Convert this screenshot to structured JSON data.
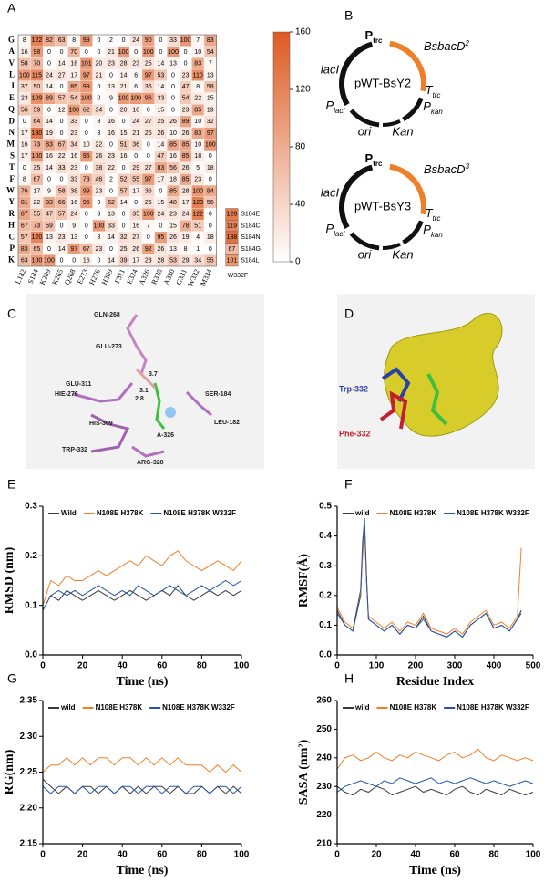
{
  "panel_labels": [
    "A",
    "B",
    "C",
    "D",
    "E",
    "F",
    "G",
    "H"
  ],
  "chart_data": [
    {
      "type": "heatmap",
      "rows": [
        "G",
        "A",
        "V",
        "L",
        "I",
        "E",
        "Q",
        "D",
        "N",
        "M",
        "S",
        "T",
        "F",
        "W",
        "Y",
        "R",
        "H",
        "C",
        "P",
        "K"
      ],
      "columns": [
        "L182",
        "S184",
        "K209",
        "K265",
        "Q268",
        "E273",
        "H276",
        "H309",
        "F311",
        "E324",
        "A326",
        "R328",
        "A330",
        "G331",
        "W332",
        "M334"
      ],
      "values": [
        [
          8,
          122,
          82,
          63,
          8,
          99,
          0,
          2,
          0,
          24,
          90,
          0,
          33,
          100,
          7,
          83
        ],
        [
          16,
          98,
          0,
          0,
          70,
          0,
          0,
          21,
          100,
          0,
          100,
          0,
          100,
          0,
          10,
          54
        ],
        [
          58,
          70,
          0,
          14,
          18,
          101,
          20,
          23,
          28,
          23,
          25,
          14,
          13,
          0,
          83,
          7
        ],
        [
          100,
          115,
          24,
          27,
          17,
          97,
          21,
          0,
          14,
          6,
          97,
          53,
          0,
          23,
          110,
          13
        ],
        [
          37,
          50,
          14,
          0,
          85,
          99,
          0,
          13,
          21,
          6,
          36,
          14,
          0,
          47,
          8,
          58
        ],
        [
          23,
          109,
          89,
          57,
          54,
          100,
          0,
          9,
          100,
          100,
          96,
          33,
          0,
          54,
          22,
          15
        ],
        [
          56,
          59,
          0,
          12,
          100,
          62,
          34,
          0,
          20,
          18,
          0,
          15,
          0,
          23,
          85,
          19
        ],
        [
          0,
          64,
          14,
          0,
          33,
          0,
          8,
          16,
          0,
          24,
          27,
          25,
          26,
          89,
          10,
          32
        ],
        [
          17,
          130,
          19,
          0,
          23,
          0,
          3,
          16,
          15,
          21,
          25,
          26,
          10,
          26,
          83,
          97
        ],
        [
          16,
          73,
          83,
          67,
          34,
          10,
          22,
          0,
          51,
          36,
          0,
          14,
          85,
          85,
          10,
          100
        ],
        [
          17,
          100,
          16,
          22,
          16,
          96,
          26,
          23,
          16,
          0,
          0,
          47,
          16,
          85,
          18,
          0
        ],
        [
          0,
          35,
          14,
          33,
          23,
          0,
          38,
          22,
          0,
          29,
          27,
          83,
          56,
          26,
          5,
          18
        ],
        [
          8,
          67,
          0,
          0,
          33,
          73,
          46,
          2,
          52,
          55,
          97,
          17,
          18,
          85,
          23,
          0
        ],
        [
          76,
          17,
          9,
          58,
          38,
          99,
          23,
          0,
          57,
          17,
          36,
          0,
          85,
          28,
          100,
          84
        ],
        [
          81,
          22,
          83,
          66,
          16,
          95,
          0,
          62,
          14,
          0,
          26,
          15,
          48,
          17,
          123,
          56
        ],
        [
          87,
          55,
          47,
          57,
          24,
          0,
          3,
          13,
          0,
          35,
          100,
          24,
          23,
          24,
          122,
          0
        ],
        [
          67,
          73,
          59,
          0,
          9,
          0,
          100,
          33,
          0,
          16,
          7,
          0,
          15,
          78,
          51,
          0
        ],
        [
          57,
          120,
          13,
          23,
          13,
          0,
          8,
          14,
          32,
          27,
          0,
          95,
          26,
          19,
          4,
          18
        ],
        [
          83,
          65,
          0,
          14,
          97,
          67,
          23,
          0,
          25,
          26,
          92,
          26,
          13,
          8,
          1,
          0
        ],
        [
          63,
          100,
          100,
          0,
          0,
          16,
          0,
          14,
          39,
          17,
          23,
          28,
          53,
          29,
          34,
          55
        ]
      ],
      "extra": {
        "column": "W332F",
        "rows": [
          "S184E",
          "S184C",
          "S184N",
          "S184G",
          "S184L"
        ],
        "values": [
          128,
          119,
          138,
          67,
          101
        ]
      },
      "clim": [
        0,
        160
      ],
      "cticks": [
        0,
        40,
        80,
        120,
        160
      ],
      "color_low": "#ffffff",
      "color_high": "#dd5a22"
    },
    {
      "type": "line",
      "xlabel": "Time (ns)",
      "ylabel": "RMSD (nm)",
      "xlim": [
        0,
        100
      ],
      "xticks": [
        0,
        20,
        40,
        60,
        80,
        100
      ],
      "ylim": [
        0,
        0.3
      ],
      "yticks": [
        {
          "value": 0,
          "label": "0.0"
        },
        0.1,
        0.2,
        0.3
      ],
      "x": [
        0,
        4,
        8,
        12,
        16,
        20,
        24,
        28,
        32,
        36,
        40,
        44,
        48,
        52,
        56,
        60,
        64,
        68,
        72,
        76,
        80,
        84,
        88,
        92,
        96,
        100
      ],
      "series": [
        {
          "name": "Wild",
          "color": "#3a3a3a",
          "values": [
            0.09,
            0.12,
            0.11,
            0.13,
            0.12,
            0.11,
            0.12,
            0.13,
            0.12,
            0.11,
            0.12,
            0.13,
            0.12,
            0.11,
            0.12,
            0.13,
            0.12,
            0.14,
            0.12,
            0.11,
            0.12,
            0.13,
            0.12,
            0.13,
            0.12,
            0.13
          ]
        },
        {
          "name": "N108E H378K",
          "color": "#f07f2a",
          "values": [
            0.1,
            0.15,
            0.14,
            0.16,
            0.15,
            0.15,
            0.16,
            0.17,
            0.16,
            0.17,
            0.18,
            0.19,
            0.18,
            0.2,
            0.19,
            0.18,
            0.2,
            0.21,
            0.19,
            0.18,
            0.17,
            0.18,
            0.19,
            0.18,
            0.17,
            0.19
          ]
        },
        {
          "name": "N108E H378K W332F",
          "color": "#2255aa",
          "values": [
            0.09,
            0.12,
            0.13,
            0.12,
            0.13,
            0.12,
            0.13,
            0.14,
            0.13,
            0.12,
            0.13,
            0.12,
            0.14,
            0.13,
            0.12,
            0.13,
            0.14,
            0.13,
            0.12,
            0.13,
            0.14,
            0.13,
            0.14,
            0.15,
            0.14,
            0.15
          ]
        }
      ]
    },
    {
      "type": "line",
      "xlabel": "Residue Index",
      "ylabel": "RMSF(Å)",
      "xlim": [
        0,
        500
      ],
      "xticks": [
        0,
        100,
        200,
        300,
        400,
        500
      ],
      "ylim": [
        0,
        0.5
      ],
      "yticks": [
        {
          "value": 0,
          "label": "0.0"
        },
        0.1,
        0.2,
        0.3,
        0.4,
        0.5
      ],
      "x": [
        0,
        20,
        40,
        60,
        65,
        70,
        75,
        80,
        100,
        120,
        140,
        160,
        180,
        200,
        220,
        240,
        260,
        280,
        300,
        320,
        340,
        360,
        380,
        400,
        420,
        440,
        460,
        470
      ],
      "series": [
        {
          "name": "wild",
          "color": "#3a3a3a",
          "values": [
            0.15,
            0.1,
            0.08,
            0.2,
            0.35,
            0.44,
            0.25,
            0.12,
            0.1,
            0.08,
            0.1,
            0.07,
            0.1,
            0.09,
            0.13,
            0.08,
            0.07,
            0.06,
            0.08,
            0.06,
            0.1,
            0.12,
            0.14,
            0.09,
            0.1,
            0.08,
            0.12,
            0.15
          ]
        },
        {
          "name": "N108E H378K",
          "color": "#f07f2a",
          "values": [
            0.16,
            0.11,
            0.09,
            0.21,
            0.33,
            0.42,
            0.24,
            0.13,
            0.11,
            0.09,
            0.11,
            0.08,
            0.11,
            0.1,
            0.14,
            0.09,
            0.08,
            0.07,
            0.09,
            0.07,
            0.11,
            0.13,
            0.15,
            0.1,
            0.11,
            0.09,
            0.13,
            0.36
          ]
        },
        {
          "name": "N108E H378K W332F",
          "color": "#2255aa",
          "values": [
            0.14,
            0.1,
            0.08,
            0.22,
            0.38,
            0.46,
            0.26,
            0.12,
            0.1,
            0.08,
            0.1,
            0.07,
            0.1,
            0.09,
            0.12,
            0.08,
            0.07,
            0.06,
            0.08,
            0.06,
            0.1,
            0.12,
            0.14,
            0.09,
            0.1,
            0.08,
            0.12,
            0.14
          ]
        }
      ]
    },
    {
      "type": "line",
      "xlabel": "Time (ns)",
      "ylabel": "RG(nm)",
      "xlim": [
        0,
        100
      ],
      "xticks": [
        0,
        20,
        40,
        60,
        80,
        100
      ],
      "ylim": [
        2.15,
        2.35
      ],
      "yticks": [
        2.15,
        {
          "value": 2.2,
          "label": "2.20"
        },
        2.25,
        {
          "value": 2.3,
          "label": "2.30"
        },
        2.35
      ],
      "x": [
        0,
        4,
        8,
        12,
        16,
        20,
        24,
        28,
        32,
        36,
        40,
        44,
        48,
        52,
        56,
        60,
        64,
        68,
        72,
        76,
        80,
        84,
        88,
        92,
        96,
        100
      ],
      "series": [
        {
          "name": "wild",
          "color": "#3a3a3a",
          "values": [
            2.24,
            2.23,
            2.22,
            2.23,
            2.22,
            2.23,
            2.23,
            2.22,
            2.23,
            2.22,
            2.23,
            2.22,
            2.23,
            2.22,
            2.23,
            2.23,
            2.22,
            2.23,
            2.22,
            2.22,
            2.23,
            2.22,
            2.23,
            2.22,
            2.23,
            2.22
          ]
        },
        {
          "name": "N108E H378K",
          "color": "#f07f2a",
          "values": [
            2.25,
            2.26,
            2.26,
            2.27,
            2.26,
            2.27,
            2.26,
            2.27,
            2.27,
            2.26,
            2.27,
            2.27,
            2.26,
            2.27,
            2.26,
            2.27,
            2.26,
            2.27,
            2.26,
            2.26,
            2.26,
            2.25,
            2.26,
            2.25,
            2.26,
            2.25
          ]
        },
        {
          "name": "N108E H378K W332F",
          "color": "#2255aa",
          "values": [
            2.23,
            2.22,
            2.23,
            2.23,
            2.22,
            2.23,
            2.22,
            2.23,
            2.23,
            2.22,
            2.23,
            2.23,
            2.22,
            2.23,
            2.23,
            2.22,
            2.23,
            2.23,
            2.22,
            2.23,
            2.23,
            2.22,
            2.23,
            2.23,
            2.22,
            2.23
          ]
        }
      ]
    },
    {
      "type": "line",
      "xlabel": "Time (ns)",
      "ylabel": "SASA (nm²)",
      "xlim": [
        0,
        100
      ],
      "xticks": [
        0,
        20,
        40,
        60,
        80,
        100
      ],
      "ylim": [
        210,
        260
      ],
      "yticks": [
        210,
        220,
        230,
        240,
        250,
        260
      ],
      "x": [
        0,
        4,
        8,
        12,
        16,
        20,
        24,
        28,
        32,
        36,
        40,
        44,
        48,
        52,
        56,
        60,
        64,
        68,
        72,
        76,
        80,
        84,
        88,
        92,
        96,
        100
      ],
      "series": [
        {
          "name": "wild",
          "color": "#3a3a3a",
          "values": [
            230,
            228,
            227,
            229,
            228,
            230,
            229,
            227,
            228,
            229,
            230,
            228,
            229,
            228,
            227,
            229,
            230,
            228,
            227,
            229,
            228,
            227,
            229,
            228,
            227,
            228
          ]
        },
        {
          "name": "N108E H378K",
          "color": "#f07f2a",
          "values": [
            236,
            240,
            241,
            239,
            240,
            242,
            240,
            239,
            241,
            240,
            242,
            241,
            240,
            239,
            241,
            242,
            240,
            241,
            243,
            240,
            239,
            241,
            240,
            239,
            240,
            239
          ]
        },
        {
          "name": "N108E H378K W332F",
          "color": "#2255aa",
          "values": [
            228,
            230,
            231,
            232,
            231,
            230,
            232,
            231,
            233,
            232,
            231,
            232,
            233,
            231,
            232,
            231,
            232,
            233,
            232,
            231,
            232,
            231,
            230,
            231,
            232,
            231
          ]
        }
      ]
    }
  ],
  "plasmids": {
    "plasmids": [
      {
        "name": "pWT-BsY2",
        "gene": {
          "main": "BsbacD",
          "sup": "2"
        }
      },
      {
        "name": "pWT-BsY3",
        "gene": {
          "main": "BsbacD",
          "sup": "3"
        }
      }
    ],
    "p_trc": {
      "main": "P",
      "sub": "trc"
    },
    "lacI": "lacI",
    "t_trc": {
      "main": "T",
      "sub": "trc"
    },
    "p_lacI": {
      "main": "P",
      "sub": "lacI"
    },
    "p_kan": {
      "main": "P",
      "sub": "kan"
    },
    "ori": "ori",
    "kan": "Kan"
  },
  "structure_c": {
    "labels": [
      "GLN-268",
      "GLU-273",
      "HIE-276",
      "GLU-311",
      "HIS-309",
      "TRP-332",
      "ARG-328",
      "SER-184",
      "LEU-182",
      "A-326"
    ],
    "distances": [
      "3.7",
      "3.1",
      "2.8"
    ]
  },
  "structure_d": {
    "labels": [
      "Trp-332",
      "Phe-332"
    ]
  }
}
